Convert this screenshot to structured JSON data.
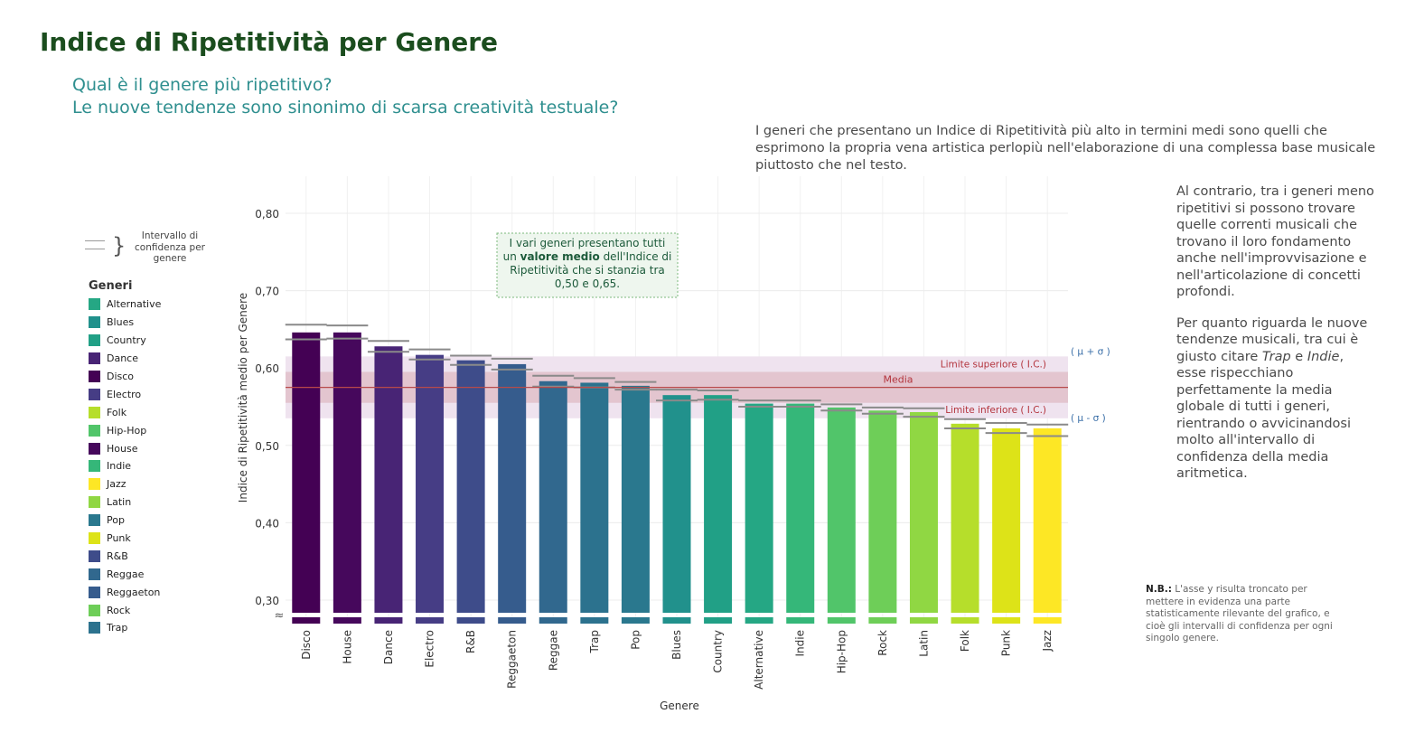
{
  "title": "Indice di Ripetitività per Genere",
  "subtitle_line1": "Qual è il genere più ripetitivo?",
  "subtitle_line2": "Le nuove tendenze sono sinonimo di scarsa creatività testuale?",
  "description_top": "I generi che presentano un Indice di Ripetitività più alto in termini medi sono quelli che esprimono la propria vena artistica perlopiù nell'elaborazione di una complessa base musicale piuttosto che nel testo.",
  "description_right_p1": "Al contrario, tra i generi meno ripetitivi si possono trovare quelle correnti musicali che trovano il loro fondamento anche nell'improvvisazione e nell'articolazione di concetti profondi.",
  "description_right_p2_a": "Per quanto riguarda le nuove tendenze musicali, tra cui è giusto citare ",
  "description_right_p2_trap": "Trap",
  "description_right_p2_and": " e ",
  "description_right_p2_indie": "Indie",
  "description_right_p2_b": ", esse rispecchiano perfettamente la media globale di tutti i generi, rientrando o avvicinandosi molto all'intervallo di confidenza della media aritmetica.",
  "note_bold": "N.B.:",
  "note_text": " L'asse y risulta troncato per mettere in evidenza una parte statisticamente rilevante del grafico, e cioè gli intervalli di confidenza per ogni singolo genere.",
  "ci_legend_text": "Intervallo di confidenza per genere",
  "legend_title": "Generi",
  "legend_items": [
    {
      "label": "Alternative",
      "color": "#25a784"
    },
    {
      "label": "Blues",
      "color": "#21918c"
    },
    {
      "label": "Country",
      "color": "#21a086"
    },
    {
      "label": "Dance",
      "color": "#482475"
    },
    {
      "label": "Disco",
      "color": "#440154"
    },
    {
      "label": "Electro",
      "color": "#463d85"
    },
    {
      "label": "Folk",
      "color": "#b6de2b"
    },
    {
      "label": "Hip-Hop",
      "color": "#51c56a"
    },
    {
      "label": "House",
      "color": "#46085c"
    },
    {
      "label": "Indie",
      "color": "#35b779"
    },
    {
      "label": "Jazz",
      "color": "#fde725"
    },
    {
      "label": "Latin",
      "color": "#90d743"
    },
    {
      "label": "Pop",
      "color": "#2a788e"
    },
    {
      "label": "Punk",
      "color": "#dde318"
    },
    {
      "label": "R&B",
      "color": "#3e4c8a"
    },
    {
      "label": "Reggae",
      "color": "#31688e"
    },
    {
      "label": "Reggaeton",
      "color": "#365c8d"
    },
    {
      "label": "Rock",
      "color": "#6ece58"
    },
    {
      "label": "Trap",
      "color": "#2c728e"
    }
  ],
  "annotation_line1": "I vari generi presentano tutti",
  "annotation_line2_a": "un ",
  "annotation_line2_bold": "valore medio",
  "annotation_line2_b": " dell'Indice di",
  "annotation_line3": "Ripetitività che si stanzia tra",
  "annotation_line4": "0,50 e 0,65.",
  "label_upper": "Limite superiore ( I.C.)",
  "label_mean": "Media",
  "label_lower": "Limite inferiore ( I.C.)",
  "label_mu_plus": "( μ + σ )",
  "label_mu_minus": "( μ - σ )",
  "chart_data": {
    "type": "bar",
    "title": "Indice di Ripetitività per Genere",
    "xlabel": "Genere",
    "ylabel": "Indice di Ripetitività medio per Genere",
    "ylim": [
      0.29,
      0.85
    ],
    "y_ticks": [
      0.3,
      0.4,
      0.5,
      0.6,
      0.7,
      0.8
    ],
    "y_tick_labels": [
      "0,30",
      "0,40",
      "0,50",
      "0,60",
      "0,70",
      "0,80"
    ],
    "axis_break": true,
    "categories": [
      "Disco",
      "House",
      "Dance",
      "Electro",
      "R&B",
      "Reggaeton",
      "Reggae",
      "Trap",
      "Pop",
      "Blues",
      "Country",
      "Alternative",
      "Indie",
      "Hip-Hop",
      "Rock",
      "Latin",
      "Folk",
      "Punk",
      "Jazz"
    ],
    "values": [
      0.646,
      0.646,
      0.628,
      0.617,
      0.61,
      0.605,
      0.583,
      0.581,
      0.577,
      0.565,
      0.565,
      0.554,
      0.554,
      0.549,
      0.545,
      0.543,
      0.528,
      0.522,
      0.522
    ],
    "ci_upper": [
      0.656,
      0.655,
      0.635,
      0.624,
      0.616,
      0.612,
      0.59,
      0.587,
      0.582,
      0.572,
      0.571,
      0.558,
      0.558,
      0.553,
      0.549,
      0.548,
      0.534,
      0.529,
      0.527
    ],
    "ci_lower": [
      0.637,
      0.638,
      0.621,
      0.611,
      0.604,
      0.598,
      0.576,
      0.575,
      0.572,
      0.558,
      0.559,
      0.55,
      0.55,
      0.545,
      0.541,
      0.537,
      0.522,
      0.516,
      0.512
    ],
    "colors": [
      "#440154",
      "#46085c",
      "#482475",
      "#463d85",
      "#3e4c8a",
      "#365c8d",
      "#31688e",
      "#2c728e",
      "#2a788e",
      "#21918c",
      "#21a086",
      "#25a784",
      "#35b779",
      "#51c56a",
      "#6ece58",
      "#90d743",
      "#b6de2b",
      "#dde318",
      "#fde725"
    ],
    "mean": 0.575,
    "mean_ci": [
      0.555,
      0.595
    ],
    "sigma_band": [
      0.535,
      0.615
    ],
    "grid": true
  }
}
